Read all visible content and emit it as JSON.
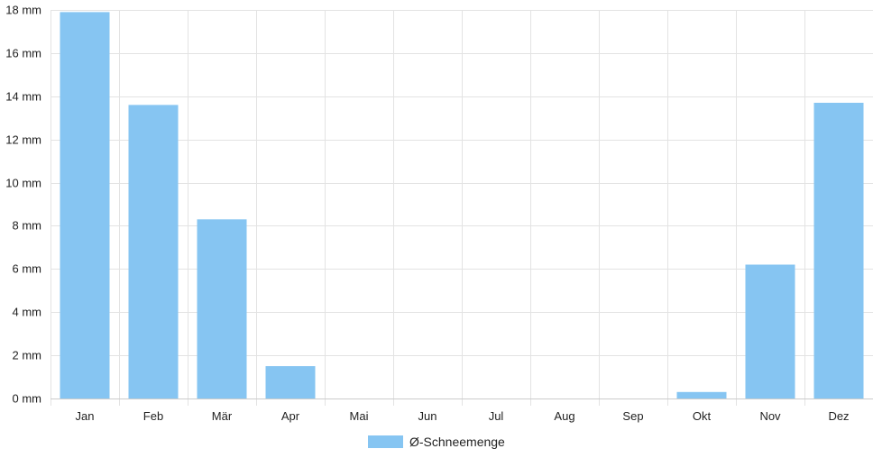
{
  "chart_data": {
    "type": "bar",
    "categories": [
      "Jan",
      "Feb",
      "Mär",
      "Apr",
      "Mai",
      "Jun",
      "Jul",
      "Aug",
      "Sep",
      "Okt",
      "Nov",
      "Dez"
    ],
    "series": [
      {
        "name": "Ø-Schneemenge",
        "values": [
          17.9,
          13.6,
          8.3,
          1.5,
          0,
          0,
          0,
          0,
          0,
          0.3,
          6.2,
          13.7
        ],
        "color": "#86c5f2"
      }
    ],
    "ylim": [
      0,
      18
    ],
    "y_ticks": [
      0,
      2,
      4,
      6,
      8,
      10,
      12,
      14,
      16,
      18
    ],
    "y_unit": "mm",
    "y_tick_labels": [
      "0 mm",
      "2 mm",
      "4 mm",
      "6 mm",
      "8 mm",
      "10 mm",
      "12 mm",
      "14 mm",
      "16 mm",
      "18 mm"
    ],
    "grid": true,
    "legend": "bottom-center",
    "gridColor": "#e3e3e3"
  }
}
